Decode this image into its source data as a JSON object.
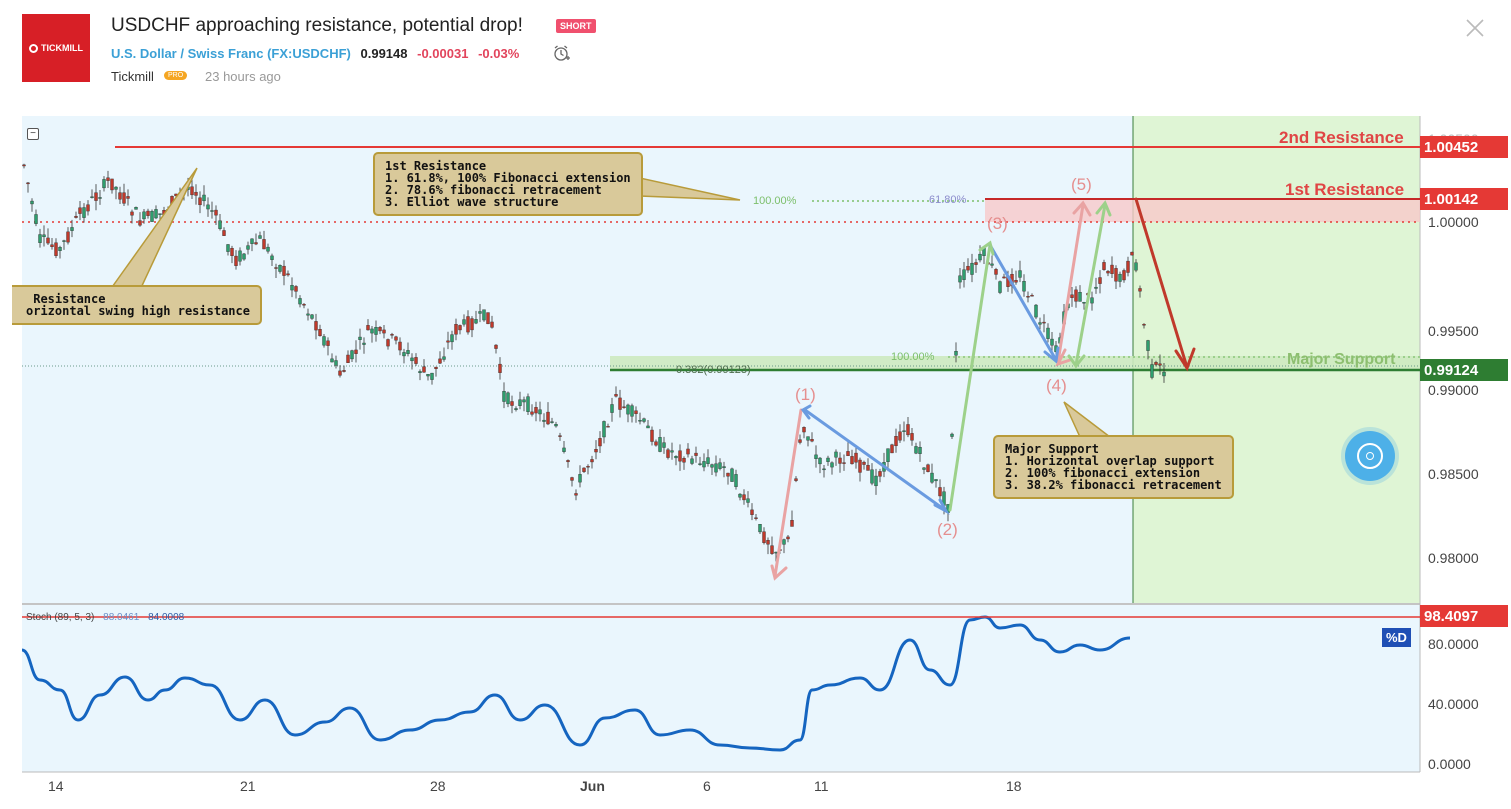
{
  "header": {
    "logo_text": "TICKMILL",
    "title": "USDCHF approaching resistance, potential drop!",
    "badge": "SHORT",
    "symbol_name": "U.S. Dollar / Swiss Franc",
    "symbol_code": "FX:USDCHF",
    "price": "0.99148",
    "change": "-0.00031",
    "change_pct": "-0.03%",
    "author": "Tickmill",
    "author_badge": "PRO",
    "time_ago": "23 hours ago"
  },
  "chart": {
    "price_axis": [
      "1.00000",
      "0.99500",
      "0.99000",
      "0.98500",
      "0.98000"
    ],
    "price_axis_top_partial": "1.00500",
    "price_tags": [
      {
        "value": "1.00452",
        "color": "#e53935"
      },
      {
        "value": "1.00142",
        "color": "#e53935"
      },
      {
        "value": "0.99124",
        "color": "#2e7d32"
      },
      {
        "value": "98.4097",
        "color": "#e53935"
      }
    ],
    "labels": {
      "second_resistance": "2nd Resistance",
      "first_resistance": "1st Resistance",
      "major_support": "Major Support"
    },
    "callouts": {
      "first_resistance": "1st Resistance\n1. 61.8%, 100% Fibonacci extension\n2. 78.6% fibonacci retracement\n3. Elliot wave structure",
      "left_resistance": " Resistance\norizontal swing high resistance",
      "major_support": "Major Support\n1. Horizontal overlap support\n2. 100% fibonacci extension\n3. 38.2% fibonacci retracement"
    },
    "fib_labels": {
      "ext_100_top": "100.00%",
      "ext_618": "61.80%",
      "ext_100_support": "100.00%",
      "retr_382": "0.382(0.99123)"
    },
    "waves": [
      "(1)",
      "(2)",
      "(3)",
      "(4)",
      "(5)"
    ],
    "x_axis": [
      "14",
      "21",
      "28",
      "Jun",
      "6",
      "11",
      "18"
    ],
    "stoch": {
      "legend": "Stoch (89, 5, 3)",
      "k": "88.0461",
      "d": "84.0008",
      "axis": [
        "80.0000",
        "40.0000",
        "0.0000"
      ],
      "badge": "%D"
    },
    "colors": {
      "resistance": "#e53935",
      "support": "#2e7d32",
      "bull": "#2e9e6e",
      "bear": "#c0392b",
      "stoch_line": "#1565c0",
      "bg": "#eaf6fd",
      "forecast_bg": "#dff5d5"
    }
  },
  "icons": {
    "close": "close-icon",
    "alarm": "alarm-clock-icon",
    "collapse": "collapse-icon",
    "fab": "target-icon"
  }
}
